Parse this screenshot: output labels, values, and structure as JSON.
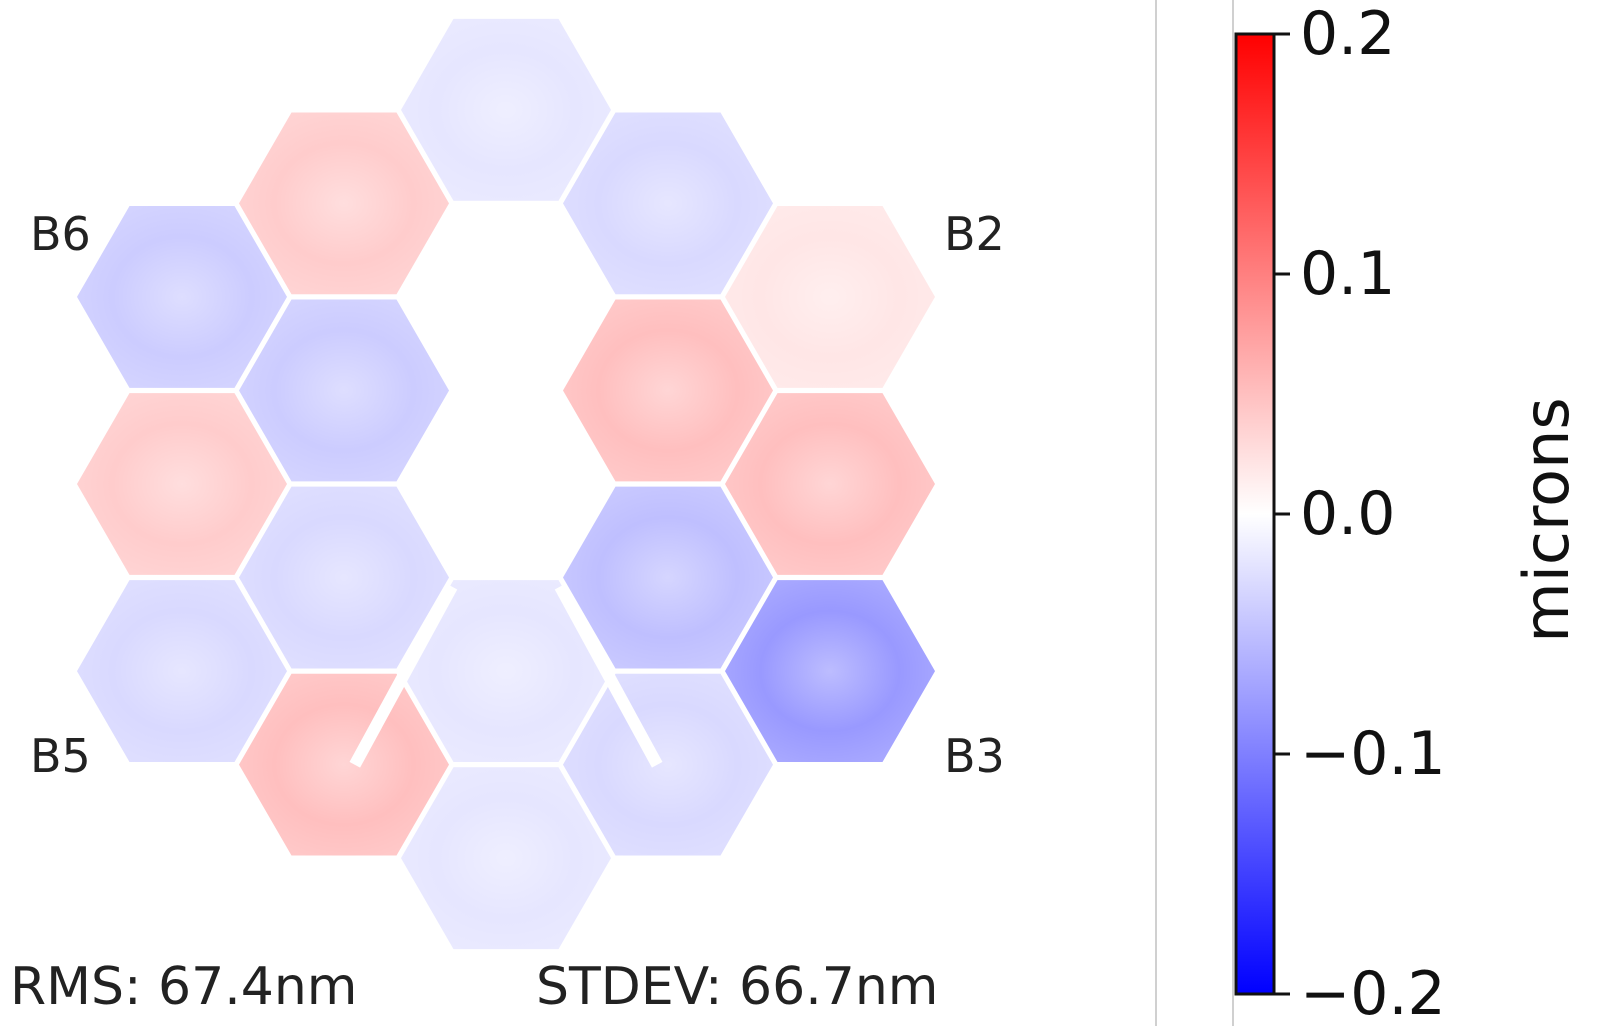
{
  "chart_data": {
    "type": "heatmap",
    "segment_labels": [
      "B6",
      "B2",
      "B5",
      "B3"
    ],
    "stats": {
      "rms": "RMS:  67.4nm",
      "stdev": "STDEV:  66.7nm"
    },
    "colorbar": {
      "label": "microns",
      "range": [
        -0.2,
        0.2
      ],
      "ticks": [
        0.2,
        0.1,
        0.0,
        -0.1,
        -0.2
      ],
      "tick_labels": [
        "0.2",
        "0.1",
        "0.0",
        "−0.1",
        "−0.2"
      ],
      "colormap": "bwr",
      "colors": {
        "low": "#0000ff",
        "mid": "#ffffff",
        "high": "#ff0000"
      }
    },
    "segments": [
      {
        "row": "top",
        "mean": 0.0
      },
      {
        "row": "inner-upper-left",
        "mean": -0.04
      },
      {
        "row": "inner-upper-right",
        "mean": 0.05
      },
      {
        "row": "inner-lower-left",
        "mean": -0.03
      },
      {
        "row": "inner-lower-right",
        "mean": -0.05
      },
      {
        "row": "inner-bottom",
        "mean": -0.02
      },
      {
        "row": "outer-top-left",
        "mean": -0.02
      },
      {
        "row": "outer-top-right",
        "mean": 0.04
      },
      {
        "row": "outer-right",
        "mean": -0.03
      },
      {
        "row": "outer-upper-right",
        "mean": 0.02
      },
      {
        "row": "outer-lower-right",
        "mean": 0.05
      },
      {
        "row": "outer-bottom-right",
        "mean": -0.08
      },
      {
        "row": "outer-bottom",
        "mean": -0.03
      },
      {
        "row": "outer-bottom-left",
        "mean": -0.02
      },
      {
        "row": "outer-lower-left",
        "mean": 0.05
      },
      {
        "row": "outer-left",
        "mean": -0.03
      },
      {
        "row": "outer-upper-left",
        "mean": 0.04
      },
      {
        "row": "outer-left-top",
        "mean": -0.04
      }
    ]
  }
}
